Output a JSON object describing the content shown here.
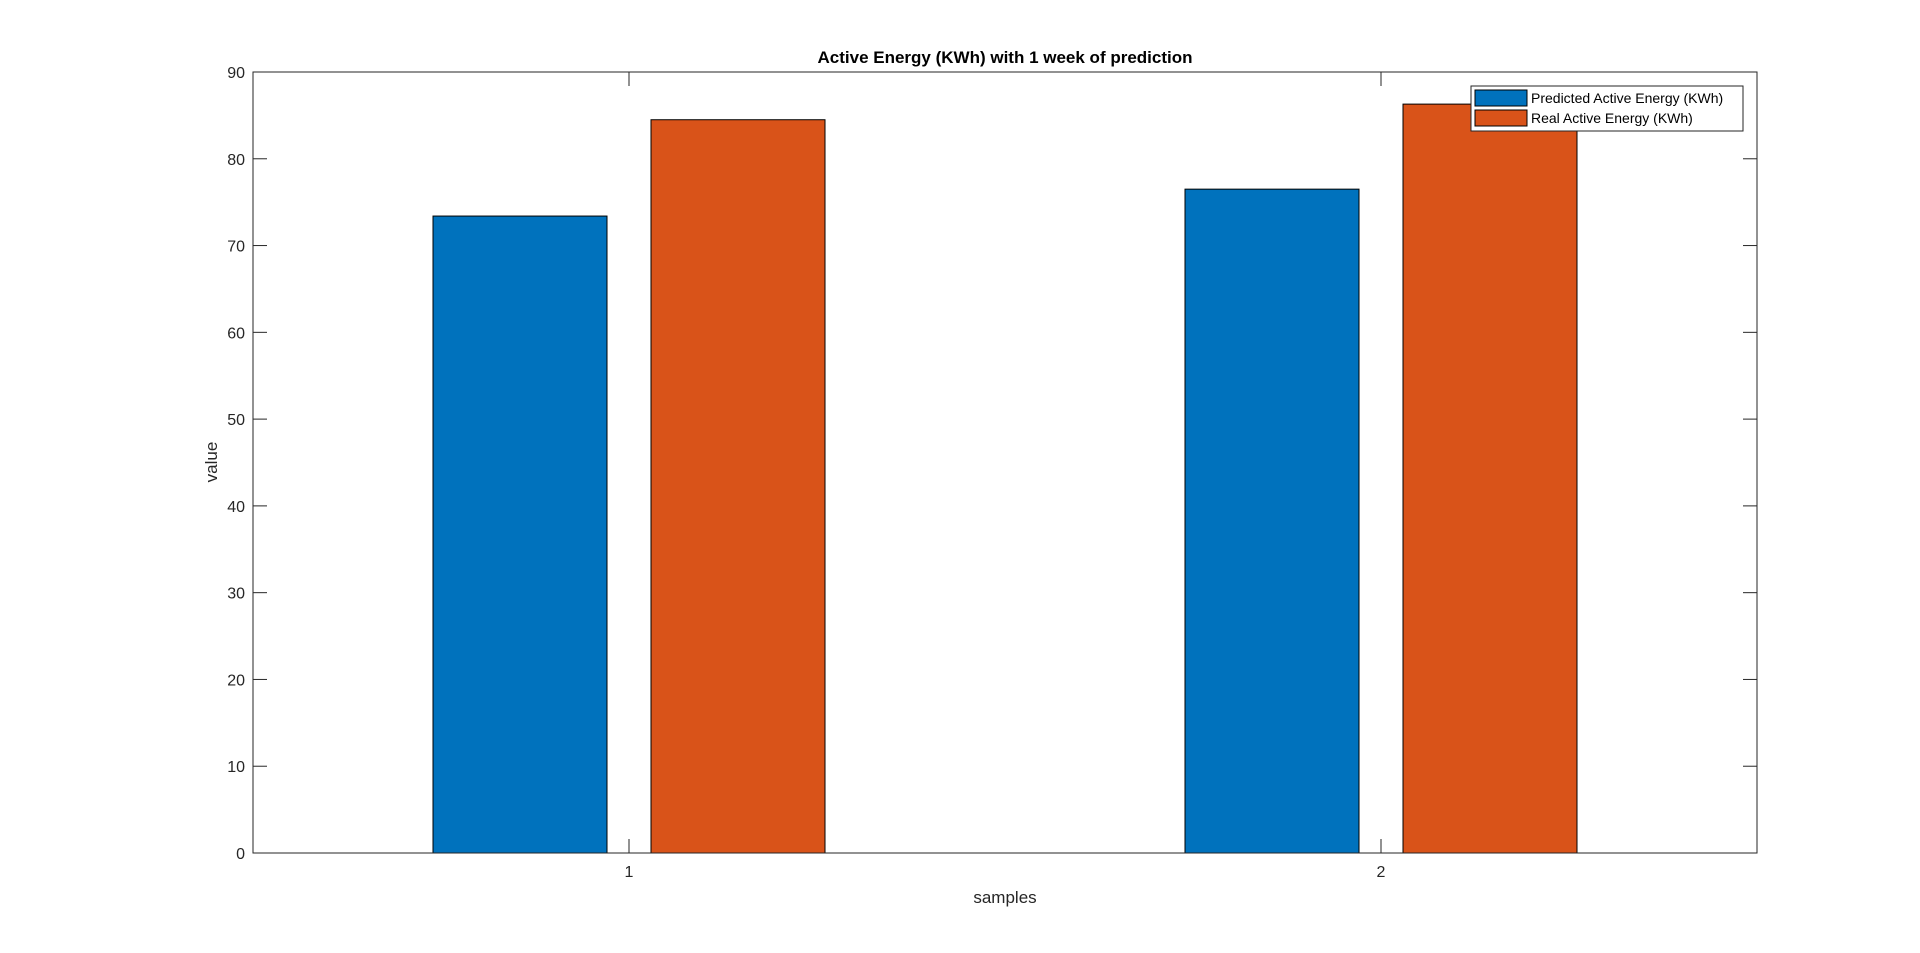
{
  "chart_data": {
    "type": "bar",
    "title": "Active Energy (KWh) with 1 week of prediction",
    "xlabel": "samples",
    "ylabel": "value",
    "categories": [
      "1",
      "2"
    ],
    "ylim": [
      0,
      90
    ],
    "yticks": [
      0,
      10,
      20,
      30,
      40,
      50,
      60,
      70,
      80,
      90
    ],
    "grid": false,
    "legend_position": "top-right",
    "series": [
      {
        "name": "Predicted Active Energy (KWh)",
        "color": "#0072BD",
        "values": [
          73.4,
          76.5
        ]
      },
      {
        "name": "Real Active Energy (KWh)",
        "color": "#D95319",
        "values": [
          84.5,
          86.3
        ]
      }
    ]
  }
}
